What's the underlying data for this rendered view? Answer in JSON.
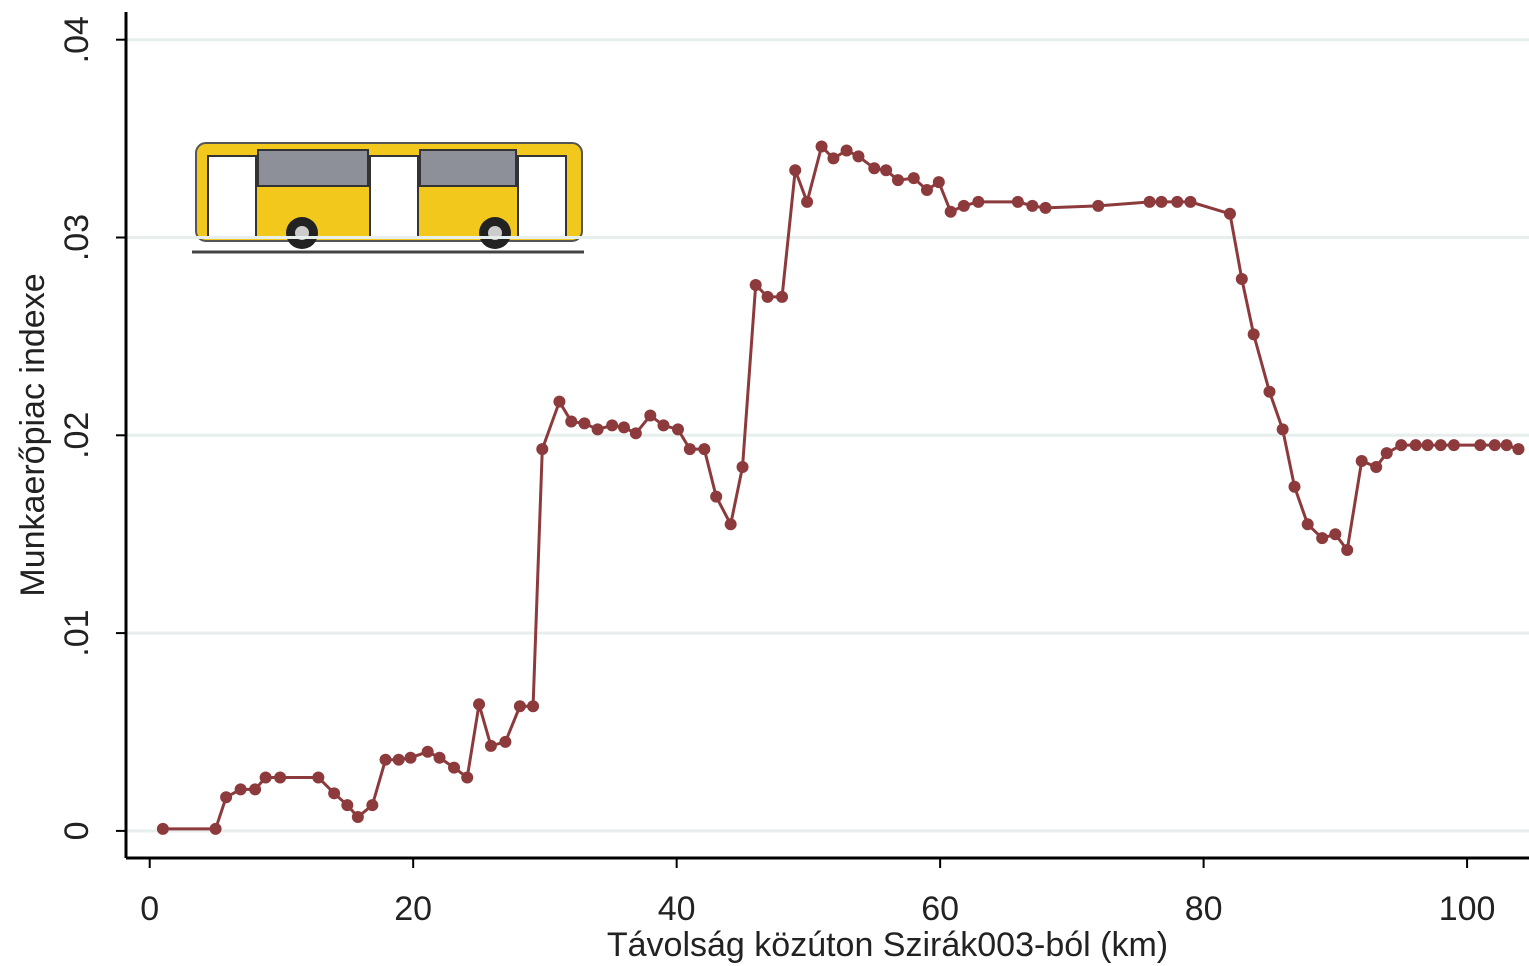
{
  "chart_data": {
    "type": "line",
    "x_label": "Távolság közúton Szirák003-ból (km)",
    "y_label": "Munkaerőpiac indexe",
    "x": [
      1.0,
      5.0,
      5.8,
      6.9,
      8.0,
      8.8,
      9.9,
      12.8,
      14.0,
      15.0,
      15.8,
      16.9,
      17.9,
      18.9,
      19.8,
      21.1,
      22.0,
      23.1,
      24.1,
      25.0,
      25.9,
      27.0,
      28.1,
      29.1,
      29.8,
      31.1,
      32.0,
      33.0,
      34.0,
      35.1,
      36.0,
      36.9,
      38.0,
      39.0,
      40.1,
      41.0,
      42.1,
      43.0,
      44.1,
      45.0,
      46.0,
      46.9,
      48.0,
      49.0,
      49.9,
      51.0,
      51.9,
      52.9,
      53.8,
      55.0,
      55.9,
      56.8,
      58.0,
      59.0,
      59.9,
      60.8,
      61.8,
      62.9,
      65.9,
      67.0,
      68.0,
      72.0,
      75.9,
      76.8,
      78.0,
      79.0,
      82.0,
      82.9,
      83.8,
      85.0,
      86.0,
      86.9,
      87.9,
      89.0,
      90.0,
      90.9,
      92.0,
      93.1,
      93.9,
      95.0,
      96.1,
      97.0,
      98.0,
      99.0,
      101.0,
      102.1,
      103.0,
      103.9
    ],
    "series": [
      {
        "name": "Munkaerőpiac indexe",
        "color": "#8c3a3c",
        "values": [
          0.0001,
          0.0001,
          0.0017,
          0.0021,
          0.0021,
          0.0027,
          0.0027,
          0.0027,
          0.0019,
          0.0013,
          0.0007,
          0.0013,
          0.0036,
          0.0036,
          0.0037,
          0.004,
          0.0037,
          0.0032,
          0.0027,
          0.0064,
          0.0043,
          0.0045,
          0.0063,
          0.0063,
          0.0193,
          0.0217,
          0.0207,
          0.0206,
          0.0203,
          0.0205,
          0.0204,
          0.0201,
          0.021,
          0.0205,
          0.0203,
          0.0193,
          0.0193,
          0.0169,
          0.0155,
          0.0184,
          0.0276,
          0.027,
          0.027,
          0.0334,
          0.0318,
          0.0346,
          0.034,
          0.0344,
          0.0341,
          0.0335,
          0.0334,
          0.0329,
          0.033,
          0.0324,
          0.0328,
          0.0313,
          0.0316,
          0.0318,
          0.0318,
          0.0316,
          0.0315,
          0.0316,
          0.0318,
          0.0318,
          0.0318,
          0.0318,
          0.0312,
          0.0279,
          0.0251,
          0.0222,
          0.0203,
          0.0174,
          0.0155,
          0.0148,
          0.015,
          0.0142,
          0.0187,
          0.0184,
          0.0191,
          0.0195,
          0.0195,
          0.0195,
          0.0195,
          0.0195,
          0.0195,
          0.0195,
          0.0195,
          0.0193
        ]
      }
    ],
    "xlim": [
      -1.8,
      104.7
    ],
    "ylim": [
      -0.00137,
      0.0414
    ],
    "xticks": [
      0,
      20,
      40,
      60,
      80,
      100
    ],
    "yticks": [
      0,
      {
        "value": 0.01,
        "label": ".01"
      },
      {
        "value": 0.02,
        "label": ".02"
      },
      {
        "value": 0.03,
        "label": ".03"
      },
      {
        "value": 0.04,
        "label": ".04"
      }
    ],
    "grid": true
  }
}
